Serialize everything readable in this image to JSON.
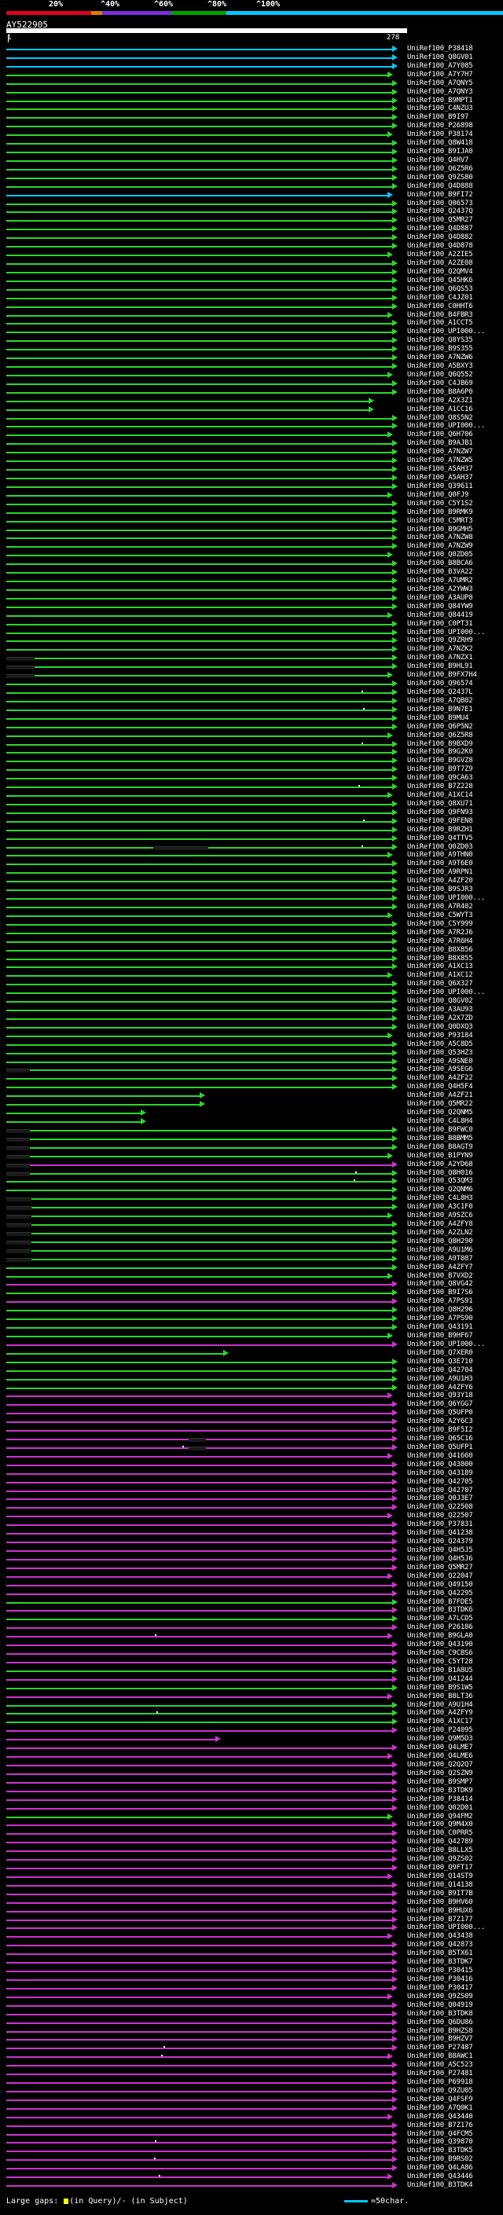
{
  "scale": {
    "labels": [
      "20%",
      "^40%",
      "^60%",
      "^80%",
      "^100%"
    ],
    "colors": [
      "#e0001b",
      "#e07a00",
      "#7a2ee0",
      "#00a000",
      "#00c8ff"
    ]
  },
  "query": {
    "title": "AY522905",
    "start": "1",
    "end": "278"
  },
  "palette": {
    "cyan": "#00c8ff",
    "green": "#2cd62c",
    "purple": "#cc33cc",
    "gap": "#1a1a1a"
  },
  "hits": [
    {
      "label": "UniRef100_P38418",
      "color": "cyan"
    },
    {
      "label": "UniRef100_Q8GV01",
      "color": "cyan"
    },
    {
      "label": "UniRef100_A7Y085",
      "color": "cyan"
    },
    {
      "label": "UniRef100_A7Y7H7",
      "color": "green"
    },
    {
      "label": "UniRef100_A7QNY5",
      "color": "green"
    },
    {
      "label": "UniRef100_A7QNY3",
      "color": "green"
    },
    {
      "label": "UniRef100_B9MPT1",
      "color": "green"
    },
    {
      "label": "UniRef100_C4NZU3",
      "color": "green"
    },
    {
      "label": "UniRef100_B9I97",
      "color": "green"
    },
    {
      "label": "UniRef100_P26898",
      "color": "green"
    },
    {
      "label": "UniRef100_P38174",
      "color": "green"
    },
    {
      "label": "UniRef100_Q8W418",
      "color": "green"
    },
    {
      "label": "UniRef100_B9IJA0",
      "color": "green"
    },
    {
      "label": "UniRef100_Q4HV7",
      "color": "green"
    },
    {
      "label": "UniRef100_Q6Z5R6",
      "color": "green"
    },
    {
      "label": "UniRef100_Q9ZS80",
      "color": "green"
    },
    {
      "label": "UniRef100_Q4D888",
      "color": "green"
    },
    {
      "label": "UniRef100_B9FI72",
      "color": "cyan"
    },
    {
      "label": "UniRef100_Q06573",
      "color": "green"
    },
    {
      "label": "UniRef100_Q2437Q",
      "color": "green"
    },
    {
      "label": "UniRef100_Q5MR27",
      "color": "green"
    },
    {
      "label": "UniRef100_Q4D887",
      "color": "green"
    },
    {
      "label": "UniRef100_Q4D882",
      "color": "green"
    },
    {
      "label": "UniRef100_Q4D878",
      "color": "green"
    },
    {
      "label": "UniRef100_A2ZIE5",
      "color": "green"
    },
    {
      "label": "UniRef100_A2ZE08",
      "color": "green"
    },
    {
      "label": "UniRef100_Q2QMV4",
      "color": "green"
    },
    {
      "label": "UniRef100_Q45HK6",
      "color": "green"
    },
    {
      "label": "UniRef100_Q6QS53",
      "color": "green"
    },
    {
      "label": "UniRef100_C4JZ01",
      "color": "green"
    },
    {
      "label": "UniRef100_C0HHT6",
      "color": "green"
    },
    {
      "label": "UniRef100_B4FBR3",
      "color": "green"
    },
    {
      "label": "UniRef100_A1CCT5",
      "color": "green"
    },
    {
      "label": "UniRef100_UPI000...",
      "color": "green"
    },
    {
      "label": "UniRef100_Q8YS35",
      "color": "green"
    },
    {
      "label": "UniRef100_B9S355",
      "color": "green"
    },
    {
      "label": "UniRef100_A7NZW6",
      "color": "green"
    },
    {
      "label": "UniRef100_A5BXY3",
      "color": "green"
    },
    {
      "label": "UniRef100_Q6Q552",
      "color": "green"
    },
    {
      "label": "UniRef100_C4JB69",
      "color": "green"
    },
    {
      "label": "UniRef100_B8A6P0",
      "color": "green"
    },
    {
      "label": "UniRef100_A2X3Z1",
      "color": "green"
    },
    {
      "label": "UniRef100_A1CC16",
      "color": "green"
    },
    {
      "label": "UniRef100_Q8S5N2",
      "color": "green"
    },
    {
      "label": "UniRef100_UPI000...",
      "color": "green"
    },
    {
      "label": "UniRef100_Q6H706",
      "color": "green"
    },
    {
      "label": "UniRef100_B9AJB1",
      "color": "green"
    },
    {
      "label": "UniRef100_A7NZW7",
      "color": "green"
    },
    {
      "label": "UniRef100_A7NZW5",
      "color": "green"
    },
    {
      "label": "UniRef100_A5AH37",
      "color": "green"
    },
    {
      "label": "UniRef100_A5AH37",
      "color": "green"
    },
    {
      "label": "UniRef100_Q39611",
      "color": "green"
    },
    {
      "label": "UniRef100_Q0FJ9",
      "color": "green"
    },
    {
      "label": "UniRef100_C5Y1S2",
      "color": "green"
    },
    {
      "label": "UniRef100_B9RMK9",
      "color": "green"
    },
    {
      "label": "UniRef100_C5MRT3",
      "color": "green"
    },
    {
      "label": "UniRef100_B9GMH5",
      "color": "green"
    },
    {
      "label": "UniRef100_A7NZW8",
      "color": "green"
    },
    {
      "label": "UniRef100_A7NZW9",
      "color": "green"
    },
    {
      "label": "UniRef100_Q0ZD05",
      "color": "green"
    },
    {
      "label": "UniRef100_B8BCA6",
      "color": "green"
    },
    {
      "label": "UniRef100_B3VA22",
      "color": "green"
    },
    {
      "label": "UniRef100_A7UMR2",
      "color": "green"
    },
    {
      "label": "UniRef100_A2YWW3",
      "color": "green"
    },
    {
      "label": "UniRef100_A3AUP8",
      "color": "green"
    },
    {
      "label": "UniRef100_Q84YW9",
      "color": "green"
    },
    {
      "label": "UniRef100_Q84419",
      "color": "green"
    },
    {
      "label": "UniRef100_C0PT31",
      "color": "green"
    },
    {
      "label": "UniRef100_UPI000...",
      "color": "green"
    },
    {
      "label": "UniRef100_Q9ZRH9",
      "color": "green"
    },
    {
      "label": "UniRef100_A7NZK2",
      "color": "green"
    },
    {
      "label": "UniRef100_A7NZX1",
      "color": "green"
    },
    {
      "label": "UniRef100_B9HL91",
      "color": "green"
    },
    {
      "label": "UniRef100_B9FX7H4",
      "color": "green"
    },
    {
      "label": "UniRef100_Q96574",
      "color": "green"
    },
    {
      "label": "UniRef100_Q2437L",
      "color": "green"
    },
    {
      "label": "UniRef100_A7QB02",
      "color": "green"
    },
    {
      "label": "UniRef100_B9N7E1",
      "color": "green"
    },
    {
      "label": "UniRef100_B9MU4",
      "color": "green"
    },
    {
      "label": "UniRef100_Q6P5N2",
      "color": "green"
    },
    {
      "label": "UniRef100_Q6Z5R8",
      "color": "green"
    },
    {
      "label": "UniRef100_B9BXD9",
      "color": "green"
    },
    {
      "label": "UniRef100_B9G2K0",
      "color": "green"
    },
    {
      "label": "UniRef100_B9GVZ8",
      "color": "green"
    },
    {
      "label": "UniRef100_B9T7Z9",
      "color": "green"
    },
    {
      "label": "UniRef100_Q9CA63",
      "color": "green"
    },
    {
      "label": "UniRef100_B7Z228",
      "color": "green"
    },
    {
      "label": "UniRef100_A1XC14",
      "color": "green"
    },
    {
      "label": "UniRef100_Q8XU71",
      "color": "green"
    },
    {
      "label": "UniRef100_Q9FN93",
      "color": "green"
    },
    {
      "label": "UniRef100_Q9FEN8",
      "color": "green"
    },
    {
      "label": "UniRef100_B9RZH1",
      "color": "green"
    },
    {
      "label": "UniRef100_Q4TTV5",
      "color": "green"
    },
    {
      "label": "UniRef100_Q0ZD03",
      "color": "green"
    },
    {
      "label": "UniRef100_A9THN0",
      "color": "green"
    },
    {
      "label": "UniRef100_A9T6E0",
      "color": "green"
    },
    {
      "label": "UniRef100_A9RPN1",
      "color": "green"
    },
    {
      "label": "UniRef100_A4ZF20",
      "color": "green"
    },
    {
      "label": "UniRef100_B9SJR3",
      "color": "green"
    },
    {
      "label": "UniRef100_UPI000...",
      "color": "green"
    },
    {
      "label": "UniRef100_A7R402",
      "color": "green"
    },
    {
      "label": "UniRef100_C5WYT3",
      "color": "green"
    },
    {
      "label": "UniRef100_C5Y999",
      "color": "green"
    },
    {
      "label": "UniRef100_A7R2J6",
      "color": "green"
    },
    {
      "label": "UniRef100_A7R6H4",
      "color": "green"
    },
    {
      "label": "UniRef100_B8X856",
      "color": "green"
    },
    {
      "label": "UniRef100_B8X855",
      "color": "green"
    },
    {
      "label": "UniRef100_A1XC13",
      "color": "green"
    },
    {
      "label": "UniRef100_A1XC12",
      "color": "green"
    },
    {
      "label": "UniRef100_Q6X327",
      "color": "green"
    },
    {
      "label": "UniRef100_UPI000...",
      "color": "green"
    },
    {
      "label": "UniRef100_Q8GV02",
      "color": "green"
    },
    {
      "label": "UniRef100_A3AU93",
      "color": "green"
    },
    {
      "label": "UniRef100_A2X7ZD",
      "color": "green"
    },
    {
      "label": "UniRef100_Q0DXQ3",
      "color": "green"
    },
    {
      "label": "UniRef100_P93184",
      "color": "green"
    },
    {
      "label": "UniRef100_A5C8D5",
      "color": "green"
    },
    {
      "label": "UniRef100_Q53HZ3",
      "color": "green"
    },
    {
      "label": "UniRef100_A9SNE0",
      "color": "green"
    },
    {
      "label": "UniRef100_A9SEG6",
      "color": "green"
    },
    {
      "label": "UniRef100_A4ZF22",
      "color": "green"
    },
    {
      "label": "UniRef100_Q4H5F4",
      "color": "green"
    },
    {
      "label": "UniRef100_A4ZF21",
      "color": "green"
    },
    {
      "label": "UniRef100_Q5MR22",
      "color": "green"
    },
    {
      "label": "UniRef100_Q2QNM5",
      "color": "green"
    },
    {
      "label": "UniRef100_C4L8H4",
      "color": "green"
    },
    {
      "label": "UniRef100_B9FWC0",
      "color": "green"
    },
    {
      "label": "UniRef100_B8BMM5",
      "color": "green"
    },
    {
      "label": "UniRef100_B8AGT9",
      "color": "green"
    },
    {
      "label": "UniRef100_B1PYN9",
      "color": "green"
    },
    {
      "label": "UniRef100_A2YD68",
      "color": "purple"
    },
    {
      "label": "UniRef100_Q8H016",
      "color": "green"
    },
    {
      "label": "UniRef100_Q53QM3",
      "color": "green"
    },
    {
      "label": "UniRef100_Q2QNM6",
      "color": "green"
    },
    {
      "label": "UniRef100_C4L8H3",
      "color": "green"
    },
    {
      "label": "UniRef100_A3C1F0",
      "color": "green"
    },
    {
      "label": "UniRef100_A9SZC6",
      "color": "green"
    },
    {
      "label": "UniRef100_A4ZFY8",
      "color": "green"
    },
    {
      "label": "UniRef100_A2ZLN2",
      "color": "green"
    },
    {
      "label": "UniRef100_Q8H290",
      "color": "green"
    },
    {
      "label": "UniRef100_A9U1M6",
      "color": "green"
    },
    {
      "label": "UniRef100_A9T087",
      "color": "green"
    },
    {
      "label": "UniRef100_A4ZFY7",
      "color": "green"
    },
    {
      "label": "UniRef100_B7VXD2",
      "color": "green"
    },
    {
      "label": "UniRef100_Q8VG42",
      "color": "purple"
    },
    {
      "label": "UniRef100_B9I7S6",
      "color": "green"
    },
    {
      "label": "UniRef100_A7PS91",
      "color": "purple"
    },
    {
      "label": "UniRef100_Q8H296",
      "color": "green"
    },
    {
      "label": "UniRef100_A7PS90",
      "color": "green"
    },
    {
      "label": "UniRef100_Q43191",
      "color": "green"
    },
    {
      "label": "UniRef100_B9HF67",
      "color": "green"
    },
    {
      "label": "UniRef100_UPI000...",
      "color": "purple"
    },
    {
      "label": "UniRef100_Q7XER0",
      "color": "green"
    },
    {
      "label": "UniRef100_Q3E710",
      "color": "green"
    },
    {
      "label": "UniRef100_Q42704",
      "color": "green"
    },
    {
      "label": "UniRef100_A9U1H3",
      "color": "green"
    },
    {
      "label": "UniRef100_A4ZFY6",
      "color": "green"
    },
    {
      "label": "UniRef100_Q93Y18",
      "color": "purple"
    },
    {
      "label": "UniRef100_Q6YGG7",
      "color": "purple"
    },
    {
      "label": "UniRef100_Q5UFP0",
      "color": "purple"
    },
    {
      "label": "UniRef100_A2Y6C3",
      "color": "purple"
    },
    {
      "label": "UniRef100_B9F5I2",
      "color": "purple"
    },
    {
      "label": "UniRef100_Q65C16",
      "color": "purple"
    },
    {
      "label": "UniRef100_Q5UFP1",
      "color": "purple"
    },
    {
      "label": "UniRef100_Q41660",
      "color": "purple"
    },
    {
      "label": "UniRef100_Q43800",
      "color": "purple"
    },
    {
      "label": "UniRef100_Q43189",
      "color": "purple"
    },
    {
      "label": "UniRef100_Q42705",
      "color": "purple"
    },
    {
      "label": "UniRef100_Q42707",
      "color": "purple"
    },
    {
      "label": "UniRef100_Q0J3E7",
      "color": "purple"
    },
    {
      "label": "UniRef100_Q22508",
      "color": "purple"
    },
    {
      "label": "UniRef100_Q22507",
      "color": "purple"
    },
    {
      "label": "UniRef100_P37831",
      "color": "purple"
    },
    {
      "label": "UniRef100_Q41238",
      "color": "purple"
    },
    {
      "label": "UniRef100_Q24379",
      "color": "purple"
    },
    {
      "label": "UniRef100_Q4H5J5",
      "color": "purple"
    },
    {
      "label": "UniRef100_Q4H5J6",
      "color": "purple"
    },
    {
      "label": "UniRef100_Q5MR27",
      "color": "purple"
    },
    {
      "label": "UniRef100_Q22047",
      "color": "purple"
    },
    {
      "label": "UniRef100_Q49150",
      "color": "purple"
    },
    {
      "label": "UniRef100_Q42295",
      "color": "purple"
    },
    {
      "label": "UniRef100_B7FDE5",
      "color": "green"
    },
    {
      "label": "UniRef100_B3TDK6",
      "color": "purple"
    },
    {
      "label": "UniRef100_A7LCD5",
      "color": "green"
    },
    {
      "label": "UniRef100_P26186",
      "color": "purple"
    },
    {
      "label": "UniRef100_B9GLA0",
      "color": "purple"
    },
    {
      "label": "UniRef100_Q43190",
      "color": "purple"
    },
    {
      "label": "UniRef100_C9CBS6",
      "color": "purple"
    },
    {
      "label": "UniRef100_C5YT28",
      "color": "purple"
    },
    {
      "label": "UniRef100_B1A8U5",
      "color": "green"
    },
    {
      "label": "UniRef100_Q41244",
      "color": "purple"
    },
    {
      "label": "UniRef100_B9S1W5",
      "color": "green"
    },
    {
      "label": "UniRef100_B8LT36",
      "color": "purple"
    },
    {
      "label": "UniRef100_A9U1H4",
      "color": "green"
    },
    {
      "label": "UniRef100_A4ZFY9",
      "color": "green"
    },
    {
      "label": "UniRef100_A1XC17",
      "color": "green"
    },
    {
      "label": "UniRef100_P24095",
      "color": "purple"
    },
    {
      "label": "UniRef100_Q9M5D3",
      "color": "purple"
    },
    {
      "label": "UniRef100_Q4LME7",
      "color": "purple"
    },
    {
      "label": "UniRef100_Q4LME6",
      "color": "purple"
    },
    {
      "label": "UniRef100_Q2Q2Q7",
      "color": "purple"
    },
    {
      "label": "UniRef100_Q2SZN9",
      "color": "purple"
    },
    {
      "label": "UniRef100_B9SMP7",
      "color": "purple"
    },
    {
      "label": "UniRef100_B3TDK9",
      "color": "purple"
    },
    {
      "label": "UniRef100_P38414",
      "color": "purple"
    },
    {
      "label": "UniRef100_Q02D01",
      "color": "purple"
    },
    {
      "label": "UniRef100_Q94FM2",
      "color": "green"
    },
    {
      "label": "UniRef100_Q9M4X0",
      "color": "purple"
    },
    {
      "label": "UniRef100_C0PRR5",
      "color": "purple"
    },
    {
      "label": "UniRef100_Q42789",
      "color": "purple"
    },
    {
      "label": "UniRef100_B8LLX5",
      "color": "purple"
    },
    {
      "label": "UniRef100_Q9ZS02",
      "color": "purple"
    },
    {
      "label": "UniRef100_Q9FT17",
      "color": "purple"
    },
    {
      "label": "UniRef100_Q14ST9",
      "color": "purple"
    },
    {
      "label": "UniRef100_Q14138",
      "color": "purple"
    },
    {
      "label": "UniRef100_B9IT7B",
      "color": "purple"
    },
    {
      "label": "UniRef100_B9HV60",
      "color": "purple"
    },
    {
      "label": "UniRef100_B9HUX6",
      "color": "purple"
    },
    {
      "label": "UniRef100_B7Z177",
      "color": "purple"
    },
    {
      "label": "UniRef100_UPI000...",
      "color": "purple"
    },
    {
      "label": "UniRef100_Q43438",
      "color": "purple"
    },
    {
      "label": "UniRef100_Q42873",
      "color": "purple"
    },
    {
      "label": "UniRef100_B5TX61",
      "color": "purple"
    },
    {
      "label": "UniRef100_B3TDK7",
      "color": "purple"
    },
    {
      "label": "UniRef100_P30415",
      "color": "purple"
    },
    {
      "label": "UniRef100_P30416",
      "color": "purple"
    },
    {
      "label": "UniRef100_P30417",
      "color": "purple"
    },
    {
      "label": "UniRef100_Q9ZS09",
      "color": "purple"
    },
    {
      "label": "UniRef100_Q04919",
      "color": "purple"
    },
    {
      "label": "UniRef100_B3TDK8",
      "color": "purple"
    },
    {
      "label": "UniRef100_Q6DU86",
      "color": "purple"
    },
    {
      "label": "UniRef100_B9HZS8",
      "color": "purple"
    },
    {
      "label": "UniRef100_B9HZV7",
      "color": "purple"
    },
    {
      "label": "UniRef100_P27487",
      "color": "purple"
    },
    {
      "label": "UniRef100_B8AWC1",
      "color": "purple"
    },
    {
      "label": "UniRef100_A5C523",
      "color": "purple"
    },
    {
      "label": "UniRef100_P27481",
      "color": "purple"
    },
    {
      "label": "UniRef100_P69918",
      "color": "purple"
    },
    {
      "label": "UniRef100_Q9ZU05",
      "color": "purple"
    },
    {
      "label": "UniRef100_Q4FSF9",
      "color": "purple"
    },
    {
      "label": "UniRef100_A7Q0K1",
      "color": "purple"
    },
    {
      "label": "UniRef100_Q43440",
      "color": "purple"
    },
    {
      "label": "UniRef100_B7Z176",
      "color": "purple"
    },
    {
      "label": "UniRef100_Q4FCM5",
      "color": "purple"
    },
    {
      "label": "UniRef100_Q39870",
      "color": "purple"
    },
    {
      "label": "UniRef100_B3TDK5",
      "color": "purple"
    },
    {
      "label": "UniRef100_B9RS02",
      "color": "purple"
    },
    {
      "label": "UniRef100_Q4LA86",
      "color": "purple"
    },
    {
      "label": "UniRef100_Q43446",
      "color": "purple"
    },
    {
      "label": "UniRef100_B3TDK4",
      "color": "purple"
    }
  ],
  "legend": {
    "prefix": "Large gaps:",
    "query_text": "(in Query)/",
    "subject_text": "- (in Subject)",
    "scale_text": "=50char."
  }
}
